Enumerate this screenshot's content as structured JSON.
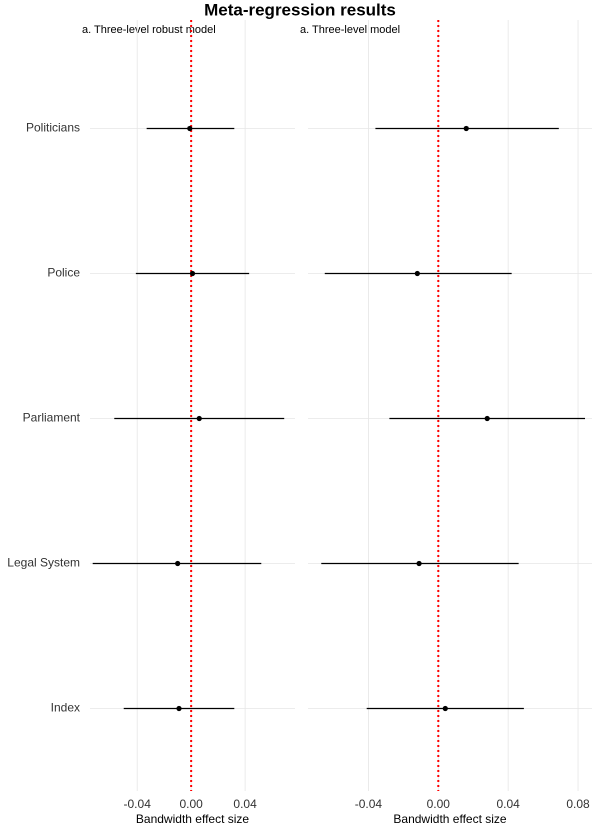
{
  "chart_data": [
    {
      "type": "forest",
      "title": "Meta-regression results",
      "subtitle": "a. Three-level robust model",
      "categories": [
        "Politicians",
        "Police",
        "Parliament",
        "Legal System",
        "Index"
      ],
      "values": [
        -0.001,
        0.001,
        0.006,
        -0.01,
        -0.009
      ],
      "lower": [
        -0.033,
        -0.041,
        -0.057,
        -0.073,
        -0.05
      ],
      "upper": [
        0.032,
        0.043,
        0.069,
        0.052,
        0.032
      ],
      "xlim": [
        -0.075,
        0.077
      ],
      "xticks": [
        -0.04,
        {
          "value": 0,
          "label": "0.00"
        },
        0.04
      ],
      "xlabel": "Bandwidth effect size",
      "vline": 0,
      "vline_color": "#ff0000",
      "color": "#000000",
      "grid": true
    },
    {
      "type": "forest",
      "subtitle": "a. Three-level model",
      "values": [
        0.016,
        -0.012,
        0.028,
        -0.011,
        0.004
      ],
      "lower": [
        -0.036,
        -0.065,
        -0.028,
        -0.067,
        -0.041
      ],
      "upper": [
        0.069,
        0.042,
        0.084,
        0.046,
        0.049
      ],
      "xlim": [
        -0.0746,
        0.088
      ],
      "xticks": [
        -0.04,
        {
          "value": 0,
          "label": "0.00"
        },
        0.04,
        0.08
      ],
      "xlabel": "Bandwidth effect size",
      "vline": 0,
      "vline_color": "#ff0000",
      "color": "#000000",
      "grid": true
    }
  ]
}
